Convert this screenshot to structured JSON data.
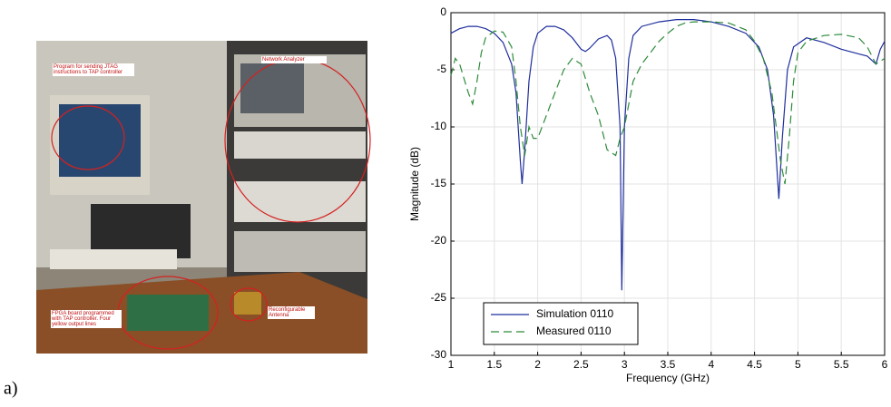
{
  "panel_label": "a)",
  "photo": {
    "annotations": [
      "Program for sending JTAG instructions to TAP controller",
      "Network Analyzer",
      "FPGA board programmed with TAP controller. Four yellow output lines",
      "Reconfigurable Antenna"
    ]
  },
  "chart_data": {
    "type": "line",
    "xlabel": "Frequency (GHz)",
    "ylabel": "Magnitude (dB)",
    "xlim": [
      1,
      6
    ],
    "ylim": [
      -30,
      0
    ],
    "xticks": [
      1,
      1.5,
      2,
      2.5,
      3,
      3.5,
      4,
      4.5,
      5,
      5.5,
      6
    ],
    "yticks": [
      -30,
      -25,
      -20,
      -15,
      -10,
      -5,
      0
    ],
    "grid": true,
    "legend": "lower left",
    "series": [
      {
        "name": "Simulation 0110",
        "color": "#1f2f9c",
        "line_style": "solid",
        "x": [
          1.0,
          1.1,
          1.2,
          1.3,
          1.4,
          1.5,
          1.6,
          1.7,
          1.75,
          1.8,
          1.82,
          1.85,
          1.9,
          1.95,
          2.0,
          2.1,
          2.2,
          2.3,
          2.4,
          2.5,
          2.55,
          2.6,
          2.7,
          2.8,
          2.85,
          2.9,
          2.95,
          2.97,
          3.0,
          3.05,
          3.1,
          3.2,
          3.4,
          3.6,
          3.8,
          4.0,
          4.2,
          4.4,
          4.55,
          4.65,
          4.72,
          4.78,
          4.82,
          4.88,
          4.95,
          5.1,
          5.3,
          5.5,
          5.7,
          5.8,
          5.9,
          5.95,
          6.0
        ],
        "values": [
          -1.8,
          -1.4,
          -1.2,
          -1.2,
          -1.4,
          -1.8,
          -2.6,
          -4.5,
          -7,
          -13,
          -15,
          -12,
          -6,
          -3,
          -1.8,
          -1.2,
          -1.2,
          -1.5,
          -2.2,
          -3.2,
          -3.4,
          -3.1,
          -2.3,
          -2.0,
          -2.4,
          -4,
          -10,
          -24.3,
          -10,
          -4,
          -2,
          -1.2,
          -0.8,
          -0.6,
          -0.6,
          -0.8,
          -1.2,
          -1.8,
          -3,
          -5,
          -9,
          -16.3,
          -11,
          -5,
          -3,
          -2.2,
          -2.6,
          -3.2,
          -3.6,
          -3.8,
          -4.5,
          -3.2,
          -2.5
        ]
      },
      {
        "name": "Measured 0110",
        "color": "#2e8b3a",
        "line_style": "dashed",
        "x": [
          1.0,
          1.05,
          1.1,
          1.2,
          1.25,
          1.3,
          1.35,
          1.4,
          1.5,
          1.6,
          1.7,
          1.75,
          1.8,
          1.85,
          1.9,
          1.95,
          2.0,
          2.1,
          2.2,
          2.3,
          2.4,
          2.5,
          2.6,
          2.7,
          2.8,
          2.9,
          2.95,
          3.0,
          3.05,
          3.1,
          3.2,
          3.3,
          3.4,
          3.5,
          3.6,
          3.7,
          3.8,
          4.0,
          4.2,
          4.4,
          4.5,
          4.6,
          4.7,
          4.8,
          4.85,
          4.9,
          4.95,
          5.0,
          5.1,
          5.3,
          5.5,
          5.7,
          5.8,
          5.9,
          6.0
        ],
        "values": [
          -5.5,
          -4,
          -4.5,
          -7,
          -8,
          -6,
          -3.5,
          -2.2,
          -1.6,
          -1.7,
          -3,
          -6,
          -10,
          -12.5,
          -10,
          -11,
          -11,
          -9,
          -7,
          -5,
          -4,
          -4.5,
          -7,
          -9,
          -12,
          -12.5,
          -11,
          -10,
          -8,
          -6,
          -4.5,
          -3.5,
          -2.5,
          -1.8,
          -1.2,
          -0.9,
          -0.8,
          -0.8,
          -0.9,
          -1.5,
          -2.5,
          -4,
          -7,
          -13,
          -15,
          -11,
          -6,
          -3.5,
          -2.5,
          -2,
          -1.9,
          -2.2,
          -3,
          -4.5,
          -4
        ]
      }
    ]
  }
}
